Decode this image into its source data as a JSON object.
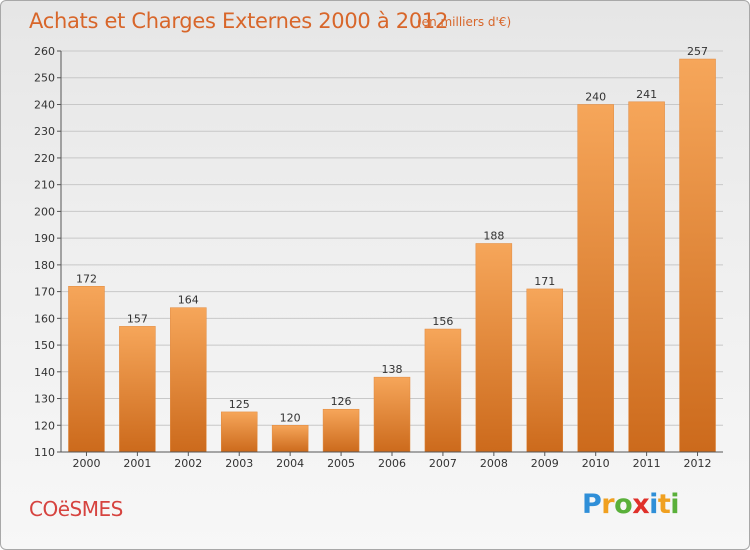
{
  "header": {
    "title": "Achats et Charges Externes 2000 à 2012",
    "subtitle": "(en milliers d'€)"
  },
  "footer": {
    "commune": "COëSMES",
    "brand": "Proxiti",
    "brand_letters": [
      {
        "ch": "P",
        "color": "#2f8fd8"
      },
      {
        "ch": "r",
        "color": "#f0a020"
      },
      {
        "ch": "o",
        "color": "#5ab03a"
      },
      {
        "ch": "x",
        "color": "#e0302a"
      },
      {
        "ch": "i",
        "color": "#2f8fd8"
      },
      {
        "ch": "t",
        "color": "#f0a020"
      },
      {
        "ch": "i",
        "color": "#5ab03a"
      }
    ]
  },
  "colors": {
    "bar_light": "#f6a65a",
    "bar_dark": "#cc6a1c",
    "title": "#d8662a",
    "commune": "#d6433f",
    "grid": "#c8c8c8",
    "axis": "#555555"
  },
  "chart_data": {
    "type": "bar",
    "title": "Achats et Charges Externes 2000 à 2012",
    "subtitle": "(en milliers d'€)",
    "categories": [
      "2000",
      "2001",
      "2002",
      "2003",
      "2004",
      "2005",
      "2006",
      "2007",
      "2008",
      "2009",
      "2010",
      "2011",
      "2012"
    ],
    "values": [
      172,
      157,
      164,
      125,
      120,
      126,
      138,
      156,
      188,
      171,
      240,
      241,
      257
    ],
    "ylim": [
      110,
      260
    ],
    "yticks": [
      110,
      120,
      130,
      140,
      150,
      160,
      170,
      180,
      190,
      200,
      210,
      220,
      230,
      240,
      250,
      260
    ],
    "grid": true,
    "data_labels": true,
    "xlabel": "",
    "ylabel": ""
  }
}
